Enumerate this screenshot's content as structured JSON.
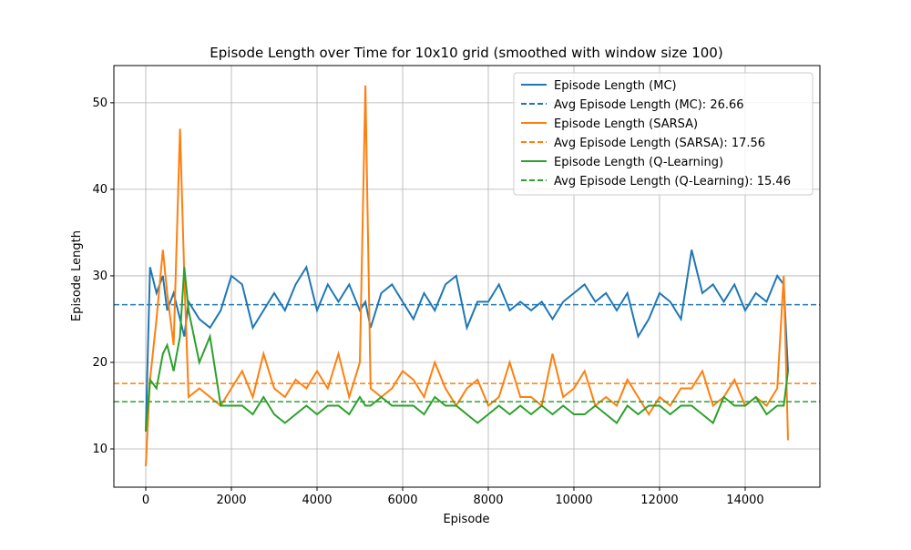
{
  "chart_data": {
    "type": "line",
    "title": "Episode Length over Time for 10x10 grid (smoothed with window size 100)",
    "x_label": "Episode",
    "y_label": "Episode Length",
    "x": [
      0,
      100,
      250,
      400,
      500,
      650,
      800,
      900,
      1000,
      1250,
      1500,
      1750,
      2000,
      2250,
      2500,
      2750,
      3000,
      3250,
      3500,
      3750,
      4000,
      4250,
      4500,
      4750,
      5000,
      5130,
      5250,
      5500,
      5750,
      6000,
      6250,
      6500,
      6750,
      7000,
      7250,
      7500,
      7750,
      8000,
      8250,
      8500,
      8750,
      9000,
      9250,
      9500,
      9750,
      10000,
      10250,
      10500,
      10750,
      11000,
      11250,
      11500,
      11750,
      12000,
      12250,
      12500,
      12750,
      13000,
      13250,
      13500,
      13750,
      14000,
      14250,
      14500,
      14750,
      14900,
      15000
    ],
    "series": [
      {
        "name": "Episode Length (MC)",
        "color": "#1f77b4",
        "values": [
          12,
          31,
          28,
          30,
          26,
          28,
          25,
          23,
          27,
          25,
          24,
          26,
          30,
          29,
          24,
          26,
          28,
          26,
          29,
          31,
          26,
          29,
          27,
          29,
          26,
          27,
          24,
          28,
          29,
          27,
          25,
          28,
          26,
          29,
          30,
          24,
          27,
          27,
          29,
          26,
          27,
          26,
          27,
          25,
          27,
          28,
          29,
          27,
          28,
          26,
          28,
          23,
          25,
          28,
          27,
          25,
          33,
          28,
          29,
          27,
          29,
          26,
          28,
          27,
          30,
          29,
          19
        ]
      },
      {
        "name": "Episode Length (SARSA)",
        "color": "#ff7f0e",
        "values": [
          8,
          18,
          25,
          33,
          28,
          22,
          47,
          30,
          16,
          17,
          16,
          15,
          17,
          19,
          16,
          21,
          17,
          16,
          18,
          17,
          19,
          17,
          21,
          16,
          20,
          52,
          17,
          16,
          17,
          19,
          18,
          16,
          20,
          17,
          15,
          17,
          18,
          15,
          16,
          20,
          16,
          16,
          15,
          21,
          16,
          17,
          19,
          15,
          16,
          15,
          18,
          16,
          14,
          16,
          15,
          17,
          17,
          19,
          15,
          16,
          18,
          15,
          16,
          15,
          17,
          30,
          11
        ]
      },
      {
        "name": "Episode Length (Q-Learning)",
        "color": "#2ca02c",
        "values": [
          12,
          18,
          17,
          21,
          22,
          19,
          23,
          31,
          26,
          20,
          23,
          15,
          15,
          15,
          14,
          16,
          14,
          13,
          14,
          15,
          14,
          15,
          15,
          14,
          16,
          15,
          15,
          16,
          15,
          15,
          15,
          14,
          16,
          15,
          15,
          14,
          13,
          14,
          15,
          14,
          15,
          14,
          15,
          14,
          15,
          14,
          14,
          15,
          14,
          13,
          15,
          14,
          15,
          15,
          14,
          15,
          15,
          14,
          13,
          16,
          15,
          15,
          16,
          14,
          15,
          15,
          19
        ]
      }
    ],
    "reference_lines": [
      {
        "name": "Avg Episode Length (MC): 26.66",
        "value": 26.66,
        "color": "#1f77b4"
      },
      {
        "name": "Avg Episode Length (SARSA): 17.56",
        "value": 17.56,
        "color": "#ff7f0e"
      },
      {
        "name": "Avg Episode Length (Q-Learning): 15.46",
        "value": 15.46,
        "color": "#2ca02c"
      }
    ],
    "xlim": [
      -745,
      15745
    ],
    "ylim": [
      5.58,
      54.3
    ],
    "xticks": [
      0,
      2000,
      4000,
      6000,
      8000,
      10000,
      12000,
      14000
    ],
    "yticks": [
      10,
      20,
      30,
      40,
      50
    ],
    "grid": true,
    "legend": "upper right"
  }
}
